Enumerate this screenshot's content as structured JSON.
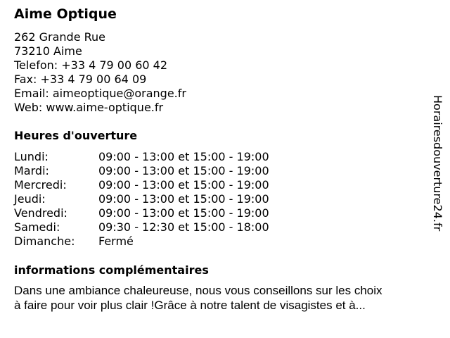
{
  "title": "Aime Optique",
  "address": [
    "262 Grande Rue",
    "73210 Aime",
    "Telefon: +33 4 79 00 60 42",
    "Fax: +33 4 79 00 64 09",
    "Email: aimeoptique@orange.fr",
    "Web: www.aime-optique.fr"
  ],
  "hours_heading": "Heures d'ouverture",
  "hours": [
    {
      "day": "Lundi:",
      "time": "09:00 - 13:00 et 15:00 - 19:00"
    },
    {
      "day": "Mardi:",
      "time": "09:00 - 13:00 et 15:00 - 19:00"
    },
    {
      "day": "Mercredi:",
      "time": "09:00 - 13:00 et 15:00 - 19:00"
    },
    {
      "day": "Jeudi:",
      "time": "09:00 - 13:00 et 15:00 - 19:00"
    },
    {
      "day": "Vendredi:",
      "time": "09:00 - 13:00 et 15:00 - 19:00"
    },
    {
      "day": "Samedi:",
      "time": "09:30 - 12:30 et 15:00 - 18:00"
    },
    {
      "day": "Dimanche:",
      "time": "Fermé"
    }
  ],
  "info_heading": "informations complémentaires",
  "description": [
    "Dans une ambiance chaleureuse, nous vous conseillons sur les choix",
    " à faire pour voir plus clair !Grâce à notre talent de visagistes et à..."
  ],
  "watermark": "Horairesdouverture24.fr"
}
